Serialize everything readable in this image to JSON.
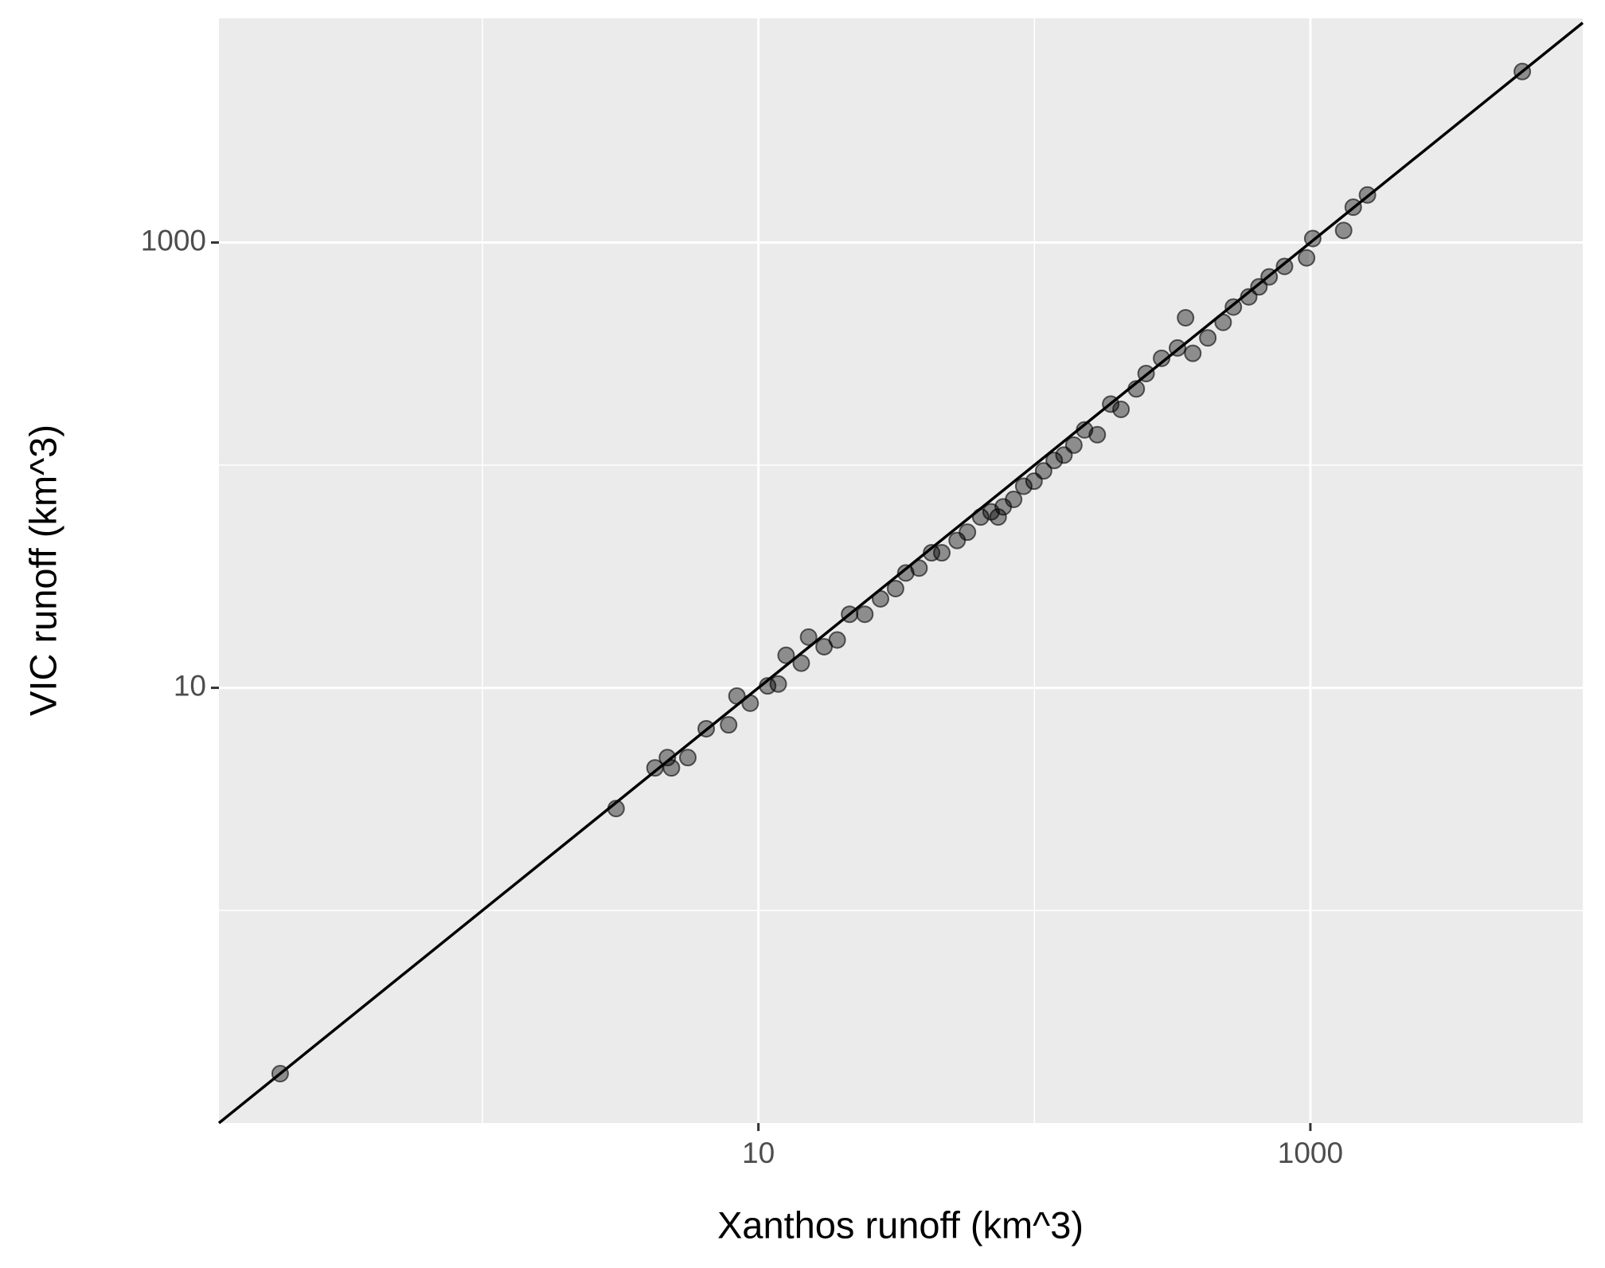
{
  "chart_data": {
    "type": "scatter",
    "x_label": "Xanthos runoff (km^3)",
    "y_label": "VIC runoff (km^3)",
    "log_x": true,
    "log_y": true,
    "grid": true,
    "identity_line": true,
    "color": "#000000",
    "xlim": [
      0.111,
      9700
    ],
    "ylim": [
      0.111,
      10160
    ],
    "xticks": [
      10,
      1000
    ],
    "yticks": [
      10,
      1000
    ],
    "xminor": [
      1,
      100
    ],
    "yminor": [
      1,
      100
    ],
    "x": [
      0.185,
      3.05,
      4.22,
      4.68,
      4.84,
      5.55,
      6.47,
      7.8,
      8.36,
      9.34,
      10.8,
      11.8,
      12.6,
      14.3,
      15.2,
      17.3,
      19.3,
      21.4,
      24.3,
      27.7,
      31.4,
      34.2,
      38.2,
      42.4,
      46.2,
      52.5,
      57.2,
      63.9,
      69.7,
      77.1,
      84.1,
      73.9,
      91.5,
      99.7,
      108,
      118,
      128,
      139,
      152,
      169,
      189,
      206,
      234,
      254,
      289,
      330,
      353,
      375,
      425,
      483,
      526,
      598,
      651,
      709,
      806,
      969,
      1020,
      1320,
      1430,
      1610,
      5860
    ],
    "y": [
      0.185,
      2.87,
      4.37,
      4.86,
      4.37,
      4.86,
      6.55,
      6.82,
      9.19,
      8.53,
      10.2,
      10.4,
      14.0,
      12.9,
      16.9,
      15.3,
      16.4,
      21.4,
      21.4,
      25.1,
      27.9,
      32.8,
      34.5,
      40.4,
      40.4,
      45.9,
      50.0,
      58.5,
      61.7,
      65.0,
      70.2,
      58.5,
      80.4,
      84.7,
      94.2,
      105,
      111,
      123,
      144,
      137,
      188,
      178,
      220,
      258,
      302,
      336,
      459,
      318,
      373,
      438,
      513,
      570,
      632,
      701,
      781,
      853,
      1042,
      1133,
      1441,
      1635,
      5860
    ]
  }
}
